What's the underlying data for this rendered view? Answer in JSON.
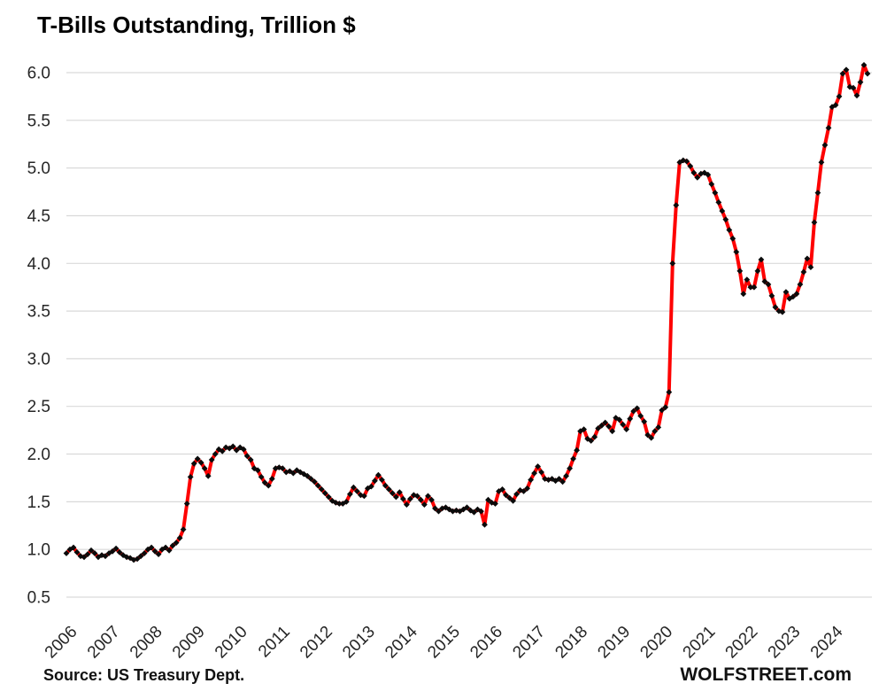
{
  "page": {
    "title": "T-Bills Outstanding, Trillion $"
  },
  "footer": {
    "source": "Source: US Treasury Dept.",
    "brand_bold": "WOLFSTREET",
    "brand_suffix": ".com"
  },
  "chart_data": {
    "type": "line",
    "title": "T-Bills Outstanding, Trillion $",
    "ylabel": "Trillion $",
    "frequency": "monthly",
    "x_start": "2006-01",
    "x_end": "2024-11",
    "x_tick_labels": [
      "2006",
      "2007",
      "2008",
      "2009",
      "2010",
      "2011",
      "2012",
      "2013",
      "2014",
      "2015",
      "2016",
      "2017",
      "2018",
      "2019",
      "2020",
      "2021",
      "2022",
      "2023",
      "2024"
    ],
    "y_ticks": [
      0.5,
      1.0,
      1.5,
      2.0,
      2.5,
      3.0,
      3.5,
      4.0,
      4.5,
      5.0,
      5.5,
      6.0
    ],
    "ylim": [
      0.5,
      6.0
    ],
    "grid": "horizontal",
    "legend": "none",
    "styles": {
      "line_color": "#fe0101",
      "marker": "diamond",
      "marker_color": "#0b0b0b",
      "grid_color": "#d9d9d9",
      "axis_text_color": "#262626",
      "background": "#ffffff"
    },
    "series": [
      {
        "name": "T-Bills outstanding, trillion $",
        "values": [
          0.96,
          1.0,
          1.02,
          0.97,
          0.93,
          0.92,
          0.95,
          0.99,
          0.96,
          0.92,
          0.94,
          0.93,
          0.96,
          0.98,
          1.01,
          0.97,
          0.94,
          0.92,
          0.91,
          0.89,
          0.9,
          0.93,
          0.96,
          1.0,
          1.02,
          0.98,
          0.95,
          1.0,
          1.02,
          0.99,
          1.04,
          1.07,
          1.12,
          1.21,
          1.48,
          1.76,
          1.9,
          1.95,
          1.91,
          1.85,
          1.77,
          1.94,
          2.0,
          2.05,
          2.03,
          2.07,
          2.06,
          2.08,
          2.04,
          2.07,
          2.05,
          1.98,
          1.94,
          1.85,
          1.83,
          1.76,
          1.7,
          1.67,
          1.74,
          1.85,
          1.86,
          1.85,
          1.81,
          1.82,
          1.8,
          1.83,
          1.81,
          1.79,
          1.77,
          1.74,
          1.71,
          1.67,
          1.63,
          1.59,
          1.55,
          1.51,
          1.49,
          1.48,
          1.48,
          1.5,
          1.58,
          1.65,
          1.61,
          1.57,
          1.56,
          1.64,
          1.66,
          1.72,
          1.78,
          1.73,
          1.67,
          1.63,
          1.59,
          1.55,
          1.6,
          1.53,
          1.47,
          1.53,
          1.57,
          1.56,
          1.52,
          1.47,
          1.56,
          1.52,
          1.43,
          1.4,
          1.43,
          1.44,
          1.42,
          1.4,
          1.41,
          1.4,
          1.42,
          1.44,
          1.41,
          1.39,
          1.42,
          1.4,
          1.26,
          1.52,
          1.49,
          1.48,
          1.61,
          1.63,
          1.57,
          1.54,
          1.51,
          1.58,
          1.62,
          1.61,
          1.64,
          1.73,
          1.8,
          1.87,
          1.81,
          1.74,
          1.73,
          1.74,
          1.72,
          1.74,
          1.71,
          1.77,
          1.85,
          1.95,
          2.04,
          2.24,
          2.26,
          2.16,
          2.14,
          2.18,
          2.27,
          2.3,
          2.33,
          2.29,
          2.24,
          2.38,
          2.36,
          2.31,
          2.26,
          2.37,
          2.45,
          2.48,
          2.4,
          2.34,
          2.2,
          2.17,
          2.24,
          2.28,
          2.46,
          2.49,
          2.65,
          4.0,
          4.61,
          5.06,
          5.08,
          5.07,
          5.02,
          4.95,
          4.9,
          4.94,
          4.95,
          4.93,
          4.83,
          4.74,
          4.64,
          4.55,
          4.46,
          4.35,
          4.26,
          4.12,
          3.92,
          3.68,
          3.83,
          3.75,
          3.75,
          3.92,
          4.04,
          3.81,
          3.78,
          3.66,
          3.54,
          3.5,
          3.49,
          3.7,
          3.63,
          3.65,
          3.68,
          3.78,
          3.91,
          4.05,
          3.96,
          4.43,
          4.74,
          5.06,
          5.24,
          5.42,
          5.64,
          5.66,
          5.75,
          5.99,
          6.03,
          5.85,
          5.84,
          5.76,
          5.9,
          6.08,
          5.99
        ]
      }
    ]
  }
}
